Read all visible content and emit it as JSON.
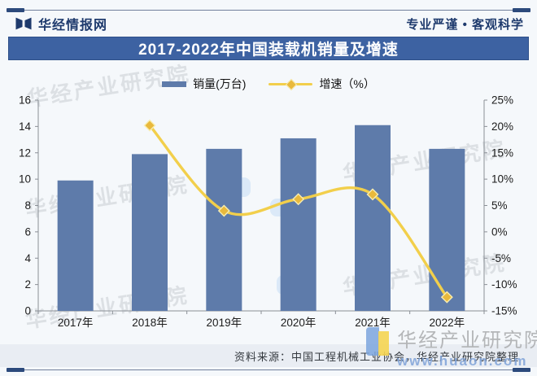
{
  "header": {
    "brand": "华经情报网",
    "slogan": "专业严谨 • 客观科学"
  },
  "title": "2017-2022年中国装载机销量及增速",
  "legend": {
    "bar_label": "销量(万台)",
    "line_label": "增速（%）"
  },
  "chart_data": {
    "type": "bar",
    "title": "2017-2022年中国装载机销量及增速",
    "categories": [
      "2017年",
      "2018年",
      "2019年",
      "2020年",
      "2021年",
      "2022年"
    ],
    "series": [
      {
        "name": "销量(万台)",
        "type": "bar",
        "axis": "left",
        "values": [
          9.9,
          11.9,
          12.3,
          13.1,
          14.1,
          12.3
        ]
      },
      {
        "name": "增速（%）",
        "type": "line",
        "axis": "right",
        "values": [
          null,
          20.2,
          4.0,
          6.2,
          7.1,
          -12.4
        ]
      }
    ],
    "left_axis": {
      "min": 0,
      "max": 16,
      "step": 2,
      "ylabel": ""
    },
    "right_axis": {
      "min": -15,
      "max": 25,
      "step": 5,
      "suffix": "%"
    },
    "grid": false,
    "legend_position": "top",
    "colors": {
      "bar": "#5e7baa",
      "line": "#f2cf4b",
      "marker_fill": "#e9b93c",
      "marker_stroke": "#f8edb0",
      "axis": "#8a8f96",
      "tick_text": "#1c1c1c"
    }
  },
  "watermark": {
    "text": "华经产业研究院",
    "url": "www.huaon.com"
  },
  "footer": {
    "source": "资料来源：中国工程机械工业协会，华经产业研究院整理"
  }
}
